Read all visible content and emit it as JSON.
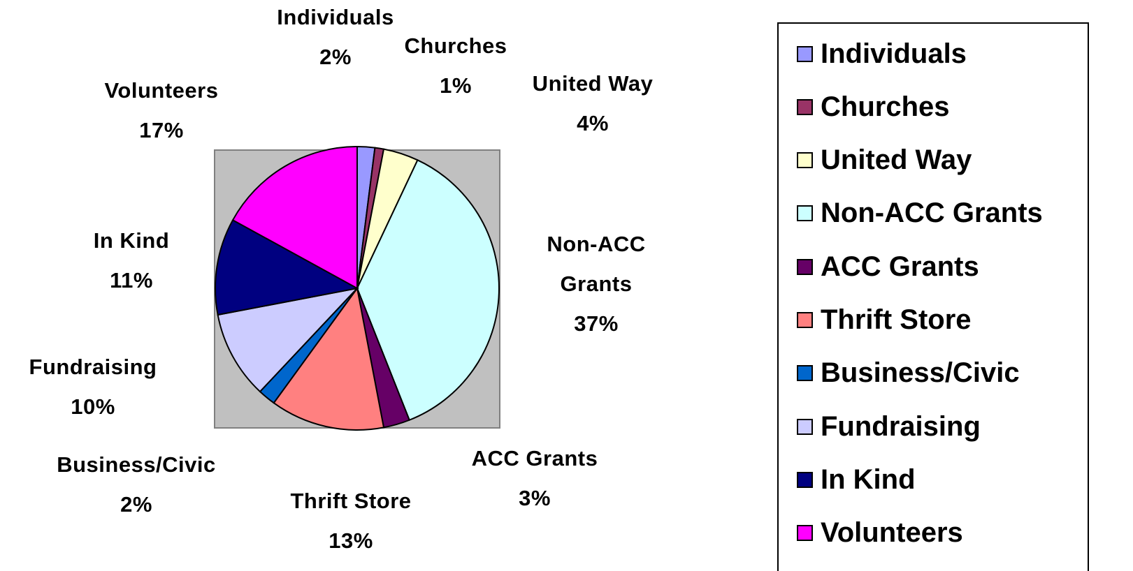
{
  "chart_data": {
    "type": "pie",
    "categories": [
      "Individuals",
      "Churches",
      "United Way",
      "Non-ACC Grants",
      "ACC Grants",
      "Thrift Store",
      "Business/Civic",
      "Fundraising",
      "In Kind",
      "Volunteers"
    ],
    "values": [
      2,
      1,
      4,
      37,
      3,
      13,
      2,
      10,
      11,
      17
    ],
    "value_labels": [
      "2%",
      "1%",
      "4%",
      "37%",
      "3%",
      "13%",
      "2%",
      "10%",
      "11%",
      "17%"
    ],
    "colors": [
      "#9999ff",
      "#993366",
      "#ffffcc",
      "#ccffff",
      "#660066",
      "#ff8080",
      "#0066cc",
      "#ccccff",
      "#000080",
      "#ff00ff"
    ],
    "legend": "right"
  }
}
